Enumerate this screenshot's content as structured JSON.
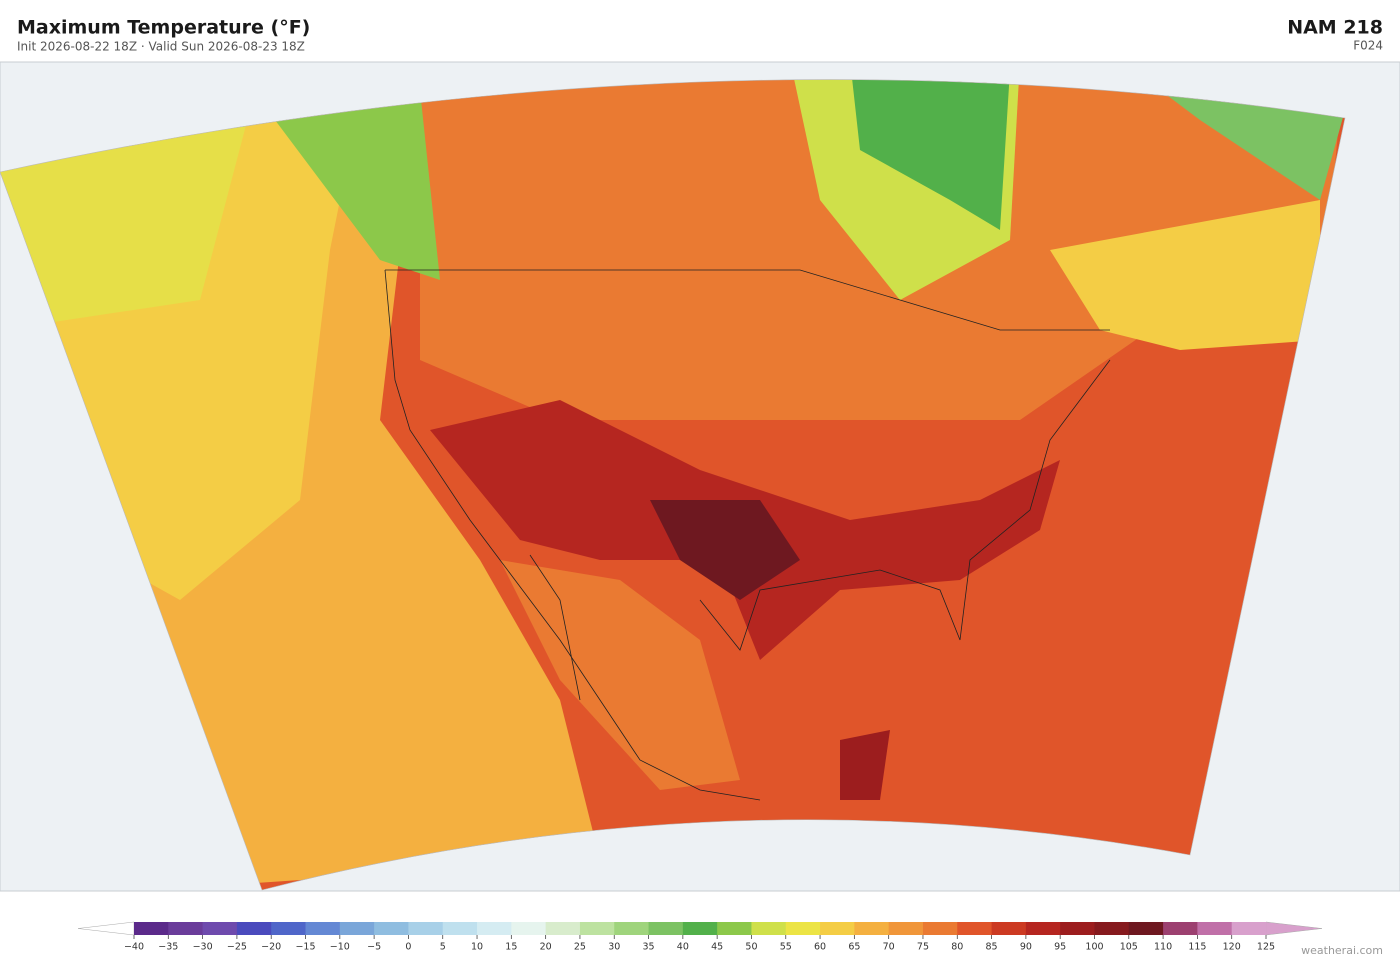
{
  "header": {
    "title": "Maximum Temperature  (°F)",
    "subtitle": "Init 2026-08-22 18Z  ·  Valid Sun 2026-08-23 18Z",
    "model": "NAM  218",
    "forecast_hour": "F024"
  },
  "colorbar": {
    "ticks": [
      {
        "value": -40,
        "label": "−40"
      },
      {
        "value": -35,
        "label": "−35"
      },
      {
        "value": -30,
        "label": "−30"
      },
      {
        "value": -25,
        "label": "−25"
      },
      {
        "value": -20,
        "label": "−20"
      },
      {
        "value": -15,
        "label": "−15"
      },
      {
        "value": -10,
        "label": "−10"
      },
      {
        "value": -5,
        "label": "−5"
      },
      0,
      5,
      10,
      15,
      20,
      25,
      30,
      35,
      40,
      45,
      50,
      55,
      60,
      65,
      70,
      75,
      80,
      85,
      90,
      95,
      100,
      105,
      110,
      115,
      120,
      125
    ],
    "colors": [
      "#5b2a8a",
      "#6a3c9a",
      "#6e4aad",
      "#4a4abd",
      "#4f66c9",
      "#6488d4",
      "#7aa6d9",
      "#8fbde0",
      "#a8d0e8",
      "#bfe0ee",
      "#d5ecf2",
      "#e6f4ee",
      "#d8eccc",
      "#bde2a0",
      "#9fd47c",
      "#7cc263",
      "#52b04a",
      "#8cc84a",
      "#cfe04a",
      "#ece445",
      "#f4cd45",
      "#f4b040",
      "#f0963a",
      "#ea7a32",
      "#e0552a",
      "#cc3a22",
      "#b52620",
      "#9c1d1e",
      "#861a1e",
      "#6e1820",
      "#9c4070",
      "#c070a8",
      "#d8a0cc"
    ],
    "under_color": "#ffffff",
    "over_color": "#d8a0cc"
  },
  "footer": {
    "watermark": "weatherai.com"
  }
}
